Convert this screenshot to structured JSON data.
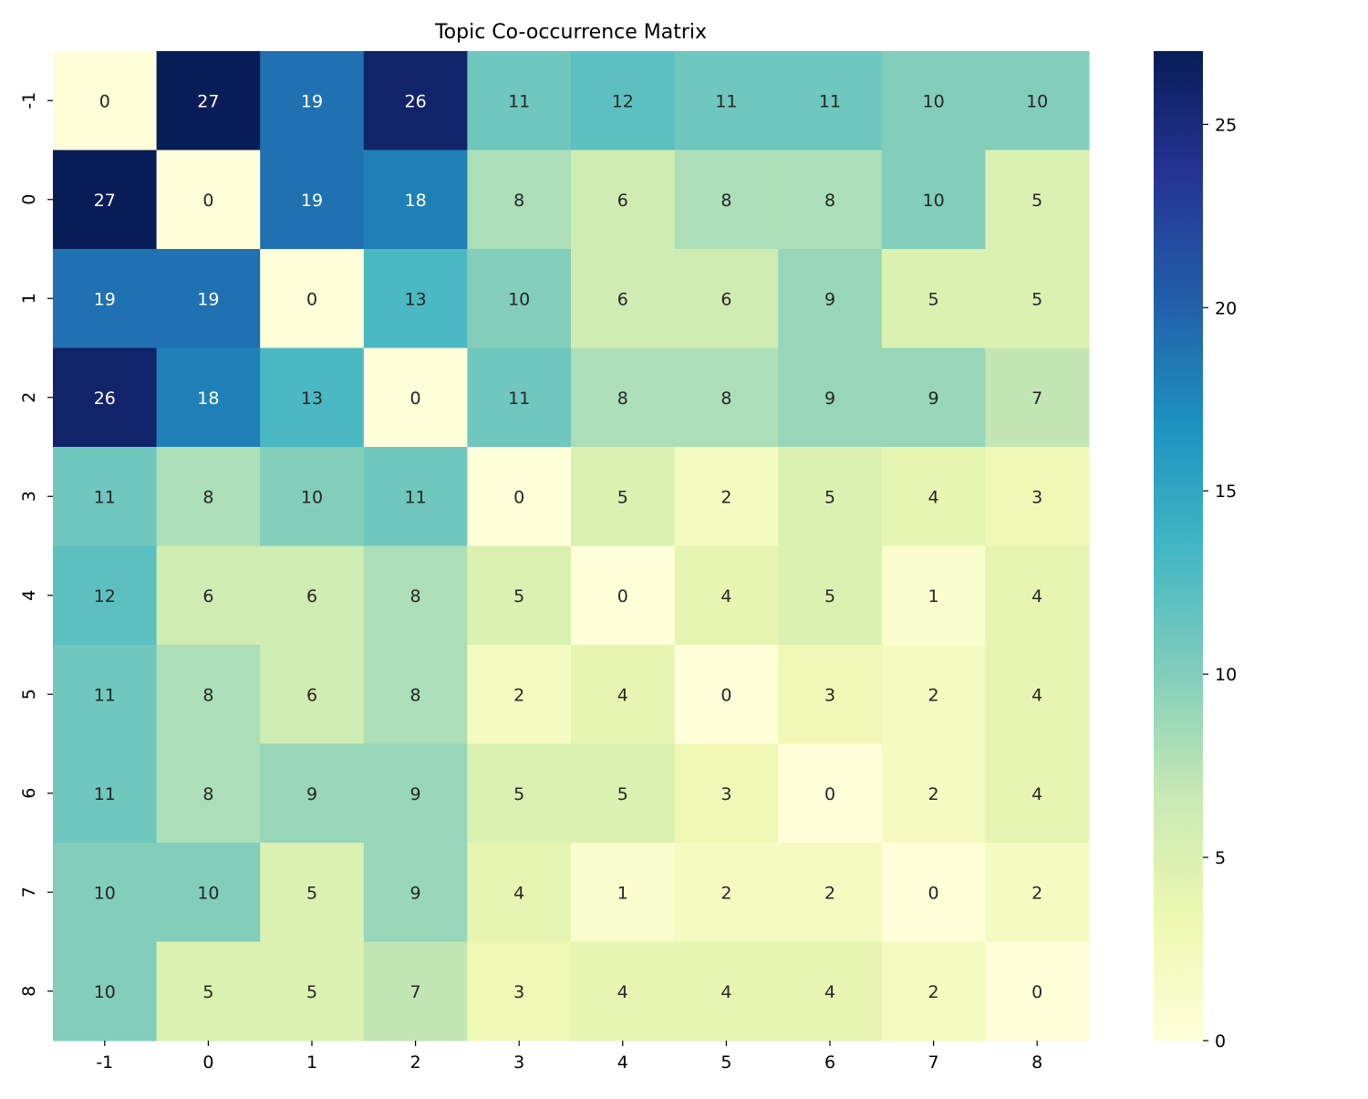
{
  "chart_data": {
    "type": "heatmap",
    "title": "Topic Co-occurrence Matrix",
    "xlabel": "",
    "ylabel": "",
    "x_categories": [
      "-1",
      "0",
      "1",
      "2",
      "3",
      "4",
      "5",
      "6",
      "7",
      "8"
    ],
    "y_categories": [
      "-1",
      "0",
      "1",
      "2",
      "3",
      "4",
      "5",
      "6",
      "7",
      "8"
    ],
    "values": [
      [
        0,
        27,
        19,
        26,
        11,
        12,
        11,
        11,
        10,
        10
      ],
      [
        27,
        0,
        19,
        18,
        8,
        6,
        8,
        8,
        10,
        5
      ],
      [
        19,
        19,
        0,
        13,
        10,
        6,
        6,
        9,
        5,
        5
      ],
      [
        26,
        18,
        13,
        0,
        11,
        8,
        8,
        9,
        9,
        7
      ],
      [
        11,
        8,
        10,
        11,
        0,
        5,
        2,
        5,
        4,
        3
      ],
      [
        12,
        6,
        6,
        8,
        5,
        0,
        4,
        5,
        1,
        4
      ],
      [
        11,
        8,
        6,
        8,
        2,
        4,
        0,
        3,
        2,
        4
      ],
      [
        11,
        8,
        9,
        9,
        5,
        5,
        3,
        0,
        2,
        4
      ],
      [
        10,
        10,
        5,
        9,
        4,
        1,
        2,
        2,
        0,
        2
      ],
      [
        10,
        5,
        5,
        7,
        3,
        4,
        4,
        4,
        2,
        0
      ]
    ],
    "annotations": true,
    "colormap": "YlGnBu",
    "colorbar": {
      "range": [
        0,
        27
      ],
      "ticks": [
        0,
        5,
        10,
        15,
        20,
        25
      ],
      "placement": "right"
    },
    "colors": {
      "YlGnBu": [
        "#ffffd9",
        "#edf8b1",
        "#c7e9b4",
        "#7fcdbb",
        "#41b6c4",
        "#1d91c0",
        "#225ea8",
        "#253494",
        "#081d58"
      ],
      "text_dark": "#262626",
      "text_light": "#ffffff",
      "axis": "#000000"
    }
  }
}
